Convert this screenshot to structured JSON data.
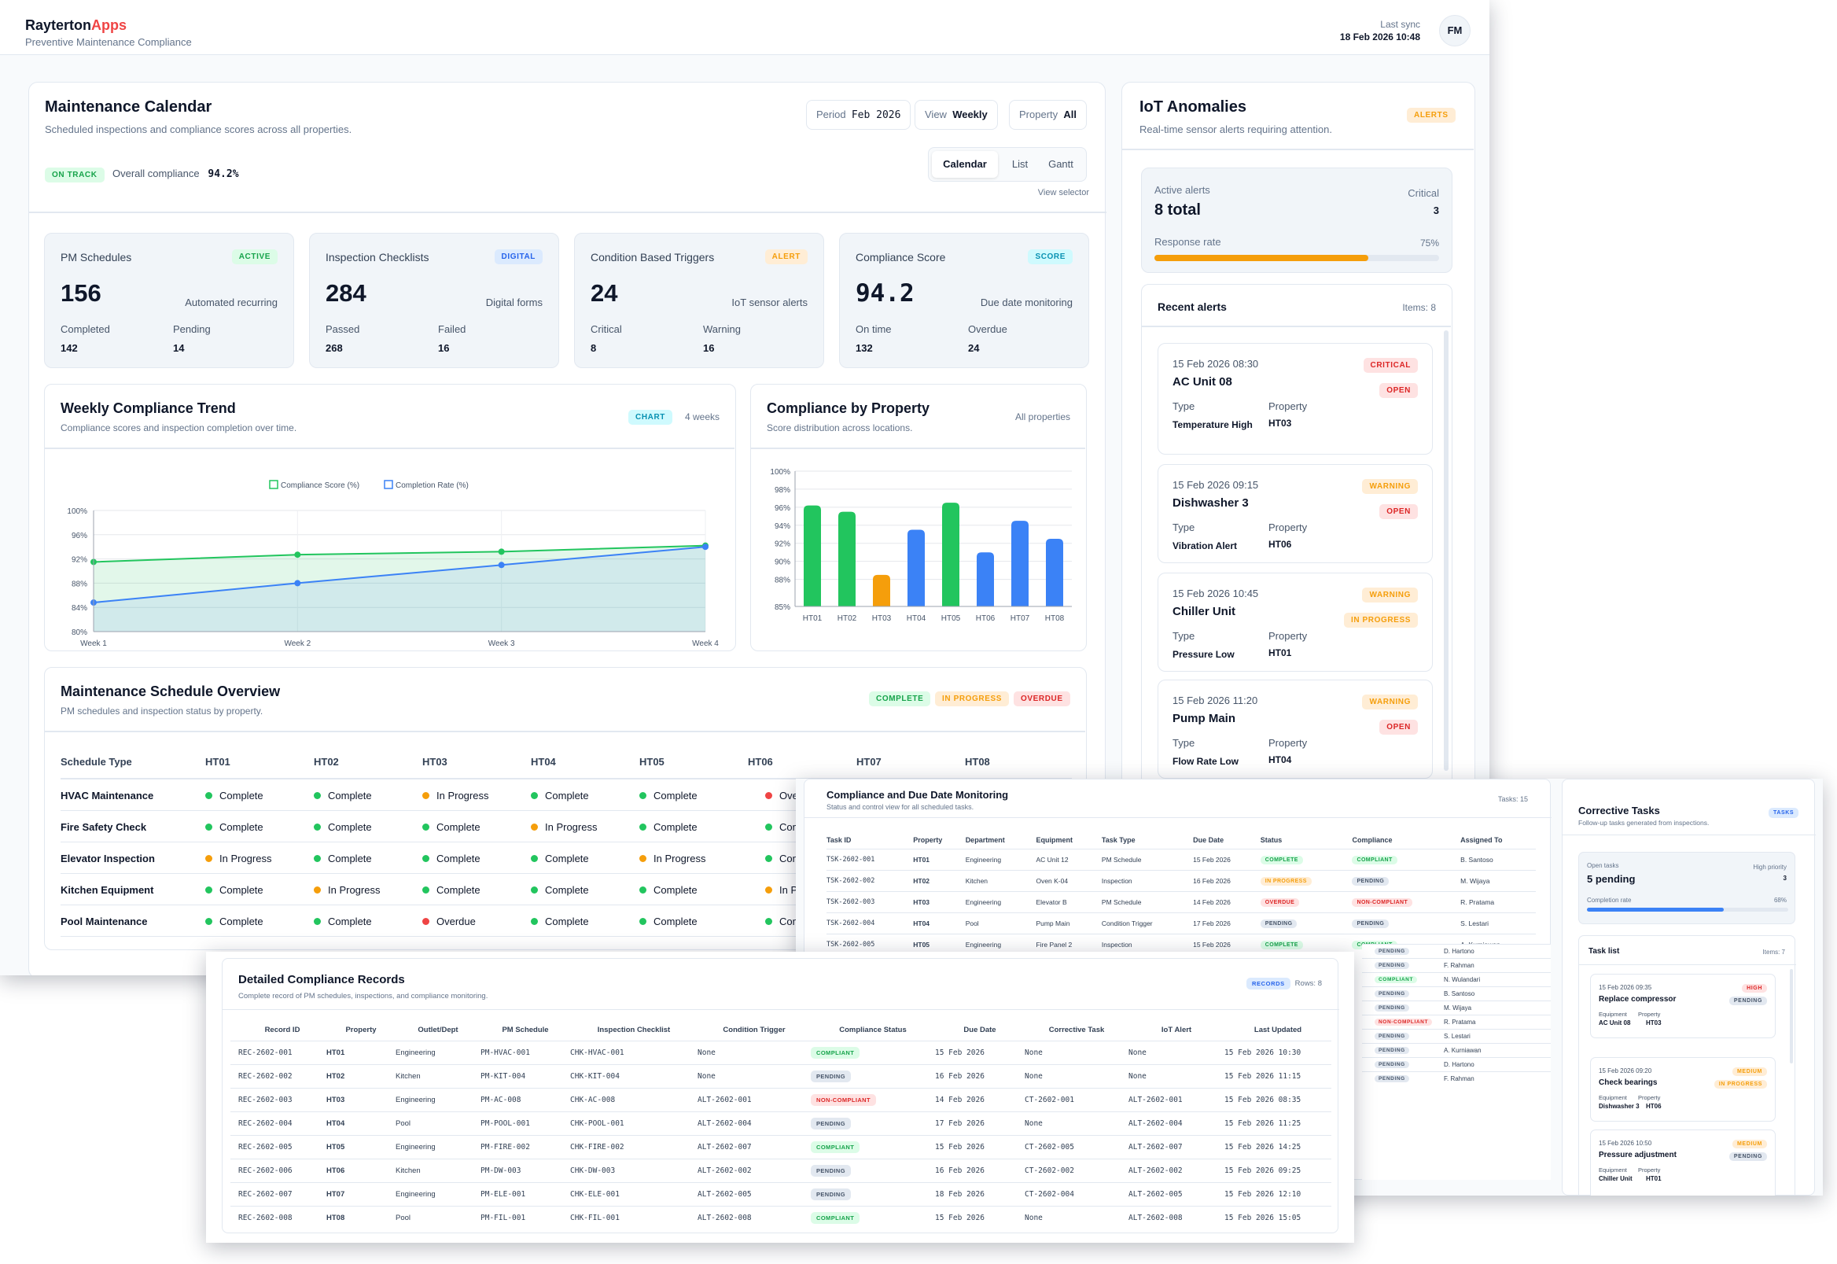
{
  "app": {
    "brand_main": "Rayterton",
    "brand_accent": "Apps",
    "subtitle": "Preventive Maintenance Compliance",
    "last_sync_label": "Last sync",
    "last_sync_value": "18 Feb 2026 10:48",
    "avatar": "FM"
  },
  "calendar": {
    "title": "Maintenance Calendar",
    "subtitle": "Scheduled inspections and compliance scores across all properties.",
    "period_label": "Period",
    "period_value": "Feb 2026",
    "view_label": "View",
    "view_value": "Weekly",
    "property_label": "Property",
    "property_value": "All",
    "tabs": [
      "Calendar",
      "List",
      "Gantt"
    ],
    "view_selector_caption": "View selector",
    "status_badge": "ON TRACK",
    "overall_label": "Overall compliance",
    "overall_value": "94.2%"
  },
  "stats": [
    {
      "title": "PM Schedules",
      "badge": "ACTIVE",
      "value": "156",
      "sub": "Automated recurring",
      "l1": "Completed",
      "v1": "142",
      "l2": "Pending",
      "v2": "14"
    },
    {
      "title": "Inspection Checklists",
      "badge": "DIGITAL",
      "value": "284",
      "sub": "Digital forms",
      "l1": "Passed",
      "v1": "268",
      "l2": "Failed",
      "v2": "16"
    },
    {
      "title": "Condition Based Triggers",
      "badge": "ALERT",
      "value": "24",
      "sub": "IoT sensor alerts",
      "l1": "Critical",
      "v1": "8",
      "l2": "Warning",
      "v2": "16"
    },
    {
      "title": "Compliance Score",
      "badge": "SCORE",
      "value": "94.2",
      "sub": "Due date monitoring",
      "l1": "On time",
      "v1": "132",
      "l2": "Overdue",
      "v2": "24"
    }
  ],
  "trend": {
    "title": "Weekly Compliance Trend",
    "subtitle": "Compliance scores and inspection completion over time.",
    "badge": "CHART",
    "range": "4 weeks"
  },
  "by_property": {
    "title": "Compliance by Property",
    "subtitle": "Score distribution across locations.",
    "filter": "All properties"
  },
  "chart_data": [
    {
      "type": "line",
      "title": "Weekly Compliance Trend",
      "categories": [
        "Week 1",
        "Week 2",
        "Week 3",
        "Week 4"
      ],
      "series": [
        {
          "name": "Compliance Score (%)",
          "values": [
            91.5,
            92.7,
            93.2,
            94.2
          ],
          "color": "#22c55e"
        },
        {
          "name": "Completion Rate (%)",
          "values": [
            84.8,
            88.0,
            91.0,
            94.0
          ],
          "color": "#3b82f6"
        }
      ],
      "ylim": [
        80,
        100
      ],
      "yticks": [
        "80%",
        "84%",
        "88%",
        "92%",
        "96%",
        "100%"
      ],
      "grid": true,
      "legend": "top"
    },
    {
      "type": "bar",
      "title": "Compliance by Property",
      "categories": [
        "HT01",
        "HT02",
        "HT03",
        "HT04",
        "HT05",
        "HT06",
        "HT07",
        "HT08"
      ],
      "values": [
        96.2,
        95.5,
        88.5,
        93.5,
        96.5,
        91.0,
        94.5,
        92.5
      ],
      "colors": [
        "#22c55e",
        "#22c55e",
        "#f59e0b",
        "#3b82f6",
        "#22c55e",
        "#3b82f6",
        "#3b82f6",
        "#3b82f6"
      ],
      "ylim": [
        85,
        100
      ],
      "yticks": [
        "85%",
        "88%",
        "90%",
        "92%",
        "94%",
        "96%",
        "98%",
        "100%"
      ],
      "grid": true
    }
  ],
  "schedule": {
    "title": "Maintenance Schedule Overview",
    "subtitle": "PM schedules and inspection status by property.",
    "legend": [
      "COMPLETE",
      "IN PROGRESS",
      "OVERDUE"
    ],
    "headers": [
      "Schedule Type",
      "HT01",
      "HT02",
      "HT03",
      "HT04",
      "HT05",
      "HT06",
      "HT07",
      "HT08"
    ],
    "rows": [
      {
        "name": "HVAC Maintenance",
        "cells": [
          "Complete",
          "Complete",
          "In Progress",
          "Complete",
          "Complete",
          "Ove"
        ],
        "colors": [
          "#22c55e",
          "#22c55e",
          "#f59e0b",
          "#22c55e",
          "#22c55e",
          "#ef4444"
        ]
      },
      {
        "name": "Fire Safety Check",
        "cells": [
          "Complete",
          "Complete",
          "Complete",
          "In Progress",
          "Complete",
          "Com"
        ],
        "colors": [
          "#22c55e",
          "#22c55e",
          "#22c55e",
          "#f59e0b",
          "#22c55e",
          "#22c55e"
        ]
      },
      {
        "name": "Elevator Inspection",
        "cells": [
          "In Progress",
          "Complete",
          "Complete",
          "Complete",
          "In Progress",
          "Com"
        ],
        "colors": [
          "#f59e0b",
          "#22c55e",
          "#22c55e",
          "#22c55e",
          "#f59e0b",
          "#22c55e"
        ]
      },
      {
        "name": "Kitchen Equipment",
        "cells": [
          "Complete",
          "In Progress",
          "Complete",
          "Complete",
          "Complete",
          "In Pr"
        ],
        "colors": [
          "#22c55e",
          "#f59e0b",
          "#22c55e",
          "#22c55e",
          "#22c55e",
          "#f59e0b"
        ]
      },
      {
        "name": "Pool Maintenance",
        "cells": [
          "Complete",
          "Complete",
          "Overdue",
          "Complete",
          "Complete",
          "Com"
        ],
        "colors": [
          "#22c55e",
          "#22c55e",
          "#ef4444",
          "#22c55e",
          "#22c55e",
          "#22c55e"
        ]
      }
    ]
  },
  "iot": {
    "title": "IoT Anomalies",
    "subtitle": "Real-time sensor alerts requiring attention.",
    "badge": "ALERTS",
    "active_label": "Active alerts",
    "active_value": "8 total",
    "critical_label": "Critical",
    "critical_value": "3",
    "response_label": "Response rate",
    "response_value": "75%",
    "response_fraction": 0.75,
    "recent_title": "Recent alerts",
    "recent_count": "Items: 8",
    "alerts": [
      {
        "ts": "15 Feb 2026 08:30",
        "name": "AC Unit 08",
        "type_label": "Type",
        "type": "Temperature High",
        "prop_label": "Property",
        "prop": "HT03",
        "b1": "CRITICAL",
        "b2": "OPEN"
      },
      {
        "ts": "15 Feb 2026 09:15",
        "name": "Dishwasher 3",
        "type_label": "Type",
        "type": "Vibration Alert",
        "prop_label": "Property",
        "prop": "HT06",
        "b1": "WARNING",
        "b2": "OPEN"
      },
      {
        "ts": "15 Feb 2026 10:45",
        "name": "Chiller Unit",
        "type_label": "Type",
        "type": "Pressure Low",
        "prop_label": "Property",
        "prop": "HT01",
        "b1": "WARNING",
        "b2": "IN PROGRESS"
      },
      {
        "ts": "15 Feb 2026 11:20",
        "name": "Pump Main",
        "type_label": "Type",
        "type": "Flow Rate Low",
        "prop_label": "Property",
        "prop": "HT04",
        "b1": "WARNING",
        "b2": "OPEN"
      }
    ]
  },
  "due": {
    "title": "Compliance and Due Date Monitoring",
    "subtitle": "Status and control view for all scheduled tasks.",
    "count": "Tasks: 15",
    "headers": [
      "Task ID",
      "Property",
      "Department",
      "Equipment",
      "Task Type",
      "Due Date",
      "Status",
      "Compliance",
      "Assigned To"
    ],
    "rows": [
      [
        "TSK-2602-001",
        "HT01",
        "Engineering",
        "AC Unit 12",
        "PM Schedule",
        "15 Feb 2026",
        "COMPLETE",
        "COMPLIANT",
        "B. Santoso"
      ],
      [
        "TSK-2602-002",
        "HT02",
        "Kitchen",
        "Oven K-04",
        "Inspection",
        "16 Feb 2026",
        "IN PROGRESS",
        "PENDING",
        "M. Wijaya"
      ],
      [
        "TSK-2602-003",
        "HT03",
        "Engineering",
        "Elevator B",
        "PM Schedule",
        "14 Feb 2026",
        "OVERDUE",
        "NON-COMPLIANT",
        "R. Pratama"
      ],
      [
        "TSK-2602-004",
        "HT04",
        "Pool",
        "Pump Main",
        "Condition Trigger",
        "17 Feb 2026",
        "PENDING",
        "PENDING",
        "S. Lestari"
      ],
      [
        "TSK-2602-005",
        "HT05",
        "Engineering",
        "Fire Panel 2",
        "Inspection",
        "15 Feb 2026",
        "COMPLETE",
        "COMPLIANT",
        "A. Kurniawan"
      ]
    ],
    "tail_rows": [
      [
        "PENDING",
        "D. Hartono"
      ],
      [
        "PENDING",
        "F. Rahman"
      ],
      [
        "COMPLIANT",
        "N. Wulandari"
      ],
      [
        "PENDING",
        "B. Santoso"
      ],
      [
        "PENDING",
        "M. Wijaya"
      ],
      [
        "NON-COMPLIANT",
        "R. Pratama"
      ],
      [
        "PENDING",
        "S. Lestari"
      ],
      [
        "PENDING",
        "A. Kurniawan"
      ],
      [
        "PENDING",
        "D. Hartono"
      ],
      [
        "PENDING",
        "F. Rahman"
      ]
    ]
  },
  "tasks": {
    "title": "Corrective Tasks",
    "subtitle": "Follow-up tasks generated from inspections.",
    "badge": "TASKS",
    "open_label": "Open tasks",
    "open_value": "5 pending",
    "high_label": "High priority",
    "high_value": "3",
    "completion_label": "Completion rate",
    "completion_value": "68%",
    "completion_fraction": 0.68,
    "list_title": "Task list",
    "list_count": "Items: 7",
    "items": [
      {
        "ts": "15 Feb 2026 09:35",
        "name": "Replace compressor",
        "eq_label": "Equipment",
        "eq": "AC Unit 08",
        "prop_label": "Property",
        "prop": "HT03",
        "b1": "HIGH",
        "b2": "PENDING"
      },
      {
        "ts": "15 Feb 2026 09:20",
        "name": "Check bearings",
        "eq_label": "Equipment",
        "eq": "Dishwasher 3",
        "prop_label": "Property",
        "prop": "HT06",
        "b1": "MEDIUM",
        "b2": "IN PROGRESS"
      },
      {
        "ts": "15 Feb 2026 10:50",
        "name": "Pressure adjustment",
        "eq_label": "Equipment",
        "eq": "Chiller Unit",
        "prop_label": "Property",
        "prop": "HT01",
        "b1": "MEDIUM",
        "b2": "PENDING"
      }
    ]
  },
  "records": {
    "title": "Detailed Compliance Records",
    "subtitle": "Complete record of PM schedules, inspections, and compliance monitoring.",
    "badge": "RECORDS",
    "count": "Rows: 8",
    "headers": [
      "Record ID",
      "Property",
      "Outlet/Dept",
      "PM Schedule",
      "Inspection Checklist",
      "Condition Trigger",
      "Compliance Status",
      "Due Date",
      "Corrective Task",
      "IoT Alert",
      "Last Updated"
    ],
    "rows": [
      [
        "REC-2602-001",
        "HT01",
        "Engineering",
        "PM-HVAC-001",
        "CHK-HVAC-001",
        "None",
        "COMPLIANT",
        "15 Feb 2026",
        "None",
        "None",
        "15 Feb 2026 10:30"
      ],
      [
        "REC-2602-002",
        "HT02",
        "Kitchen",
        "PM-KIT-004",
        "CHK-KIT-004",
        "None",
        "PENDING",
        "16 Feb 2026",
        "None",
        "None",
        "15 Feb 2026 11:15"
      ],
      [
        "REC-2602-003",
        "HT03",
        "Engineering",
        "PM-AC-008",
        "CHK-AC-008",
        "ALT-2602-001",
        "NON-COMPLIANT",
        "14 Feb 2026",
        "CT-2602-001",
        "ALT-2602-001",
        "15 Feb 2026 08:35"
      ],
      [
        "REC-2602-004",
        "HT04",
        "Pool",
        "PM-POOL-001",
        "CHK-POOL-001",
        "ALT-2602-004",
        "PENDING",
        "17 Feb 2026",
        "None",
        "ALT-2602-004",
        "15 Feb 2026 11:25"
      ],
      [
        "REC-2602-005",
        "HT05",
        "Engineering",
        "PM-FIRE-002",
        "CHK-FIRE-002",
        "ALT-2602-007",
        "COMPLIANT",
        "15 Feb 2026",
        "CT-2602-005",
        "ALT-2602-007",
        "15 Feb 2026 14:25"
      ],
      [
        "REC-2602-006",
        "HT06",
        "Kitchen",
        "PM-DW-003",
        "CHK-DW-003",
        "ALT-2602-002",
        "PENDING",
        "16 Feb 2026",
        "CT-2602-002",
        "ALT-2602-002",
        "15 Feb 2026 09:25"
      ],
      [
        "REC-2602-007",
        "HT07",
        "Engineering",
        "PM-ELE-001",
        "CHK-ELE-001",
        "ALT-2602-005",
        "PENDING",
        "18 Feb 2026",
        "CT-2602-004",
        "ALT-2602-005",
        "15 Feb 2026 12:10"
      ],
      [
        "REC-2602-008",
        "HT08",
        "Pool",
        "PM-FIL-001",
        "CHK-FIL-001",
        "ALT-2602-008",
        "COMPLIANT",
        "15 Feb 2026",
        "None",
        "ALT-2602-008",
        "15 Feb 2026 15:05"
      ]
    ]
  }
}
